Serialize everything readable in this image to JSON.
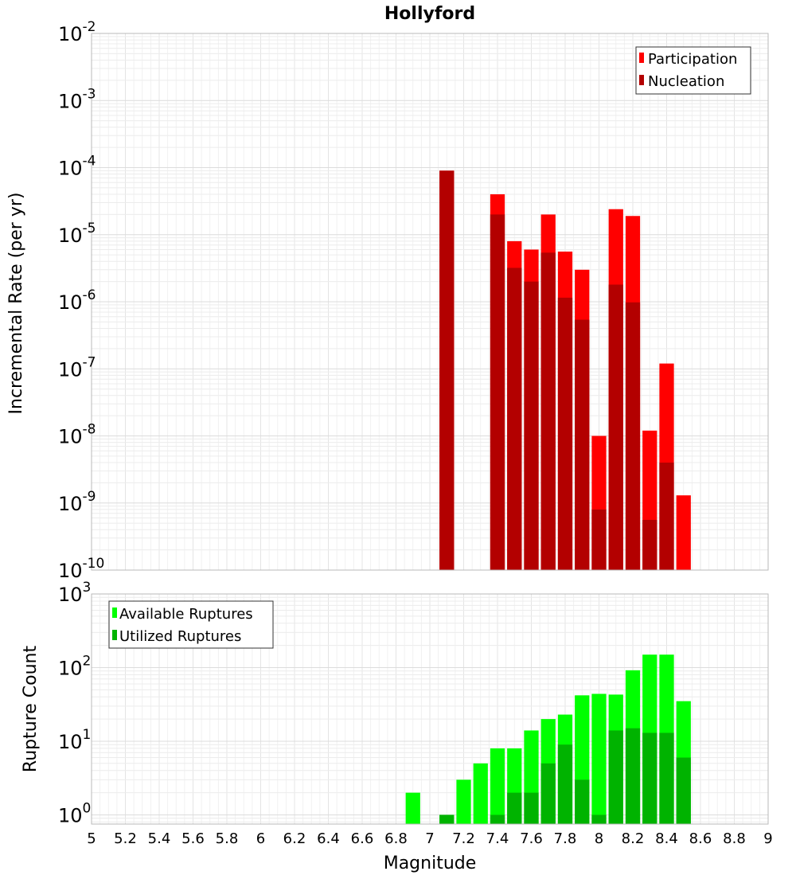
{
  "chart_data": [
    {
      "type": "bar",
      "title": "Hollyford",
      "xlabel": "",
      "ylabel": "Incremental Rate (per yr)",
      "yscale": "log",
      "ylim": [
        1e-10,
        0.01
      ],
      "xlim": [
        5,
        9
      ],
      "bin_width": 0.1,
      "y_tick_labels": [
        {
          "base": "10",
          "exp": "-10"
        },
        {
          "base": "10",
          "exp": "-9"
        },
        {
          "base": "10",
          "exp": "-8"
        },
        {
          "base": "10",
          "exp": "-7"
        },
        {
          "base": "10",
          "exp": "-6"
        },
        {
          "base": "10",
          "exp": "-5"
        },
        {
          "base": "10",
          "exp": "-4"
        },
        {
          "base": "10",
          "exp": "-3"
        },
        {
          "base": "10",
          "exp": "-2"
        }
      ],
      "legend": {
        "position": "top-right"
      },
      "grid": true,
      "x": [
        7.1,
        7.4,
        7.5,
        7.6,
        7.7,
        7.8,
        7.9,
        8.0,
        8.1,
        8.2,
        8.3,
        8.4,
        8.5
      ],
      "series": [
        {
          "name": "Participation",
          "color": "#ff0000",
          "values": [
            9e-05,
            4e-05,
            8e-06,
            6e-06,
            2e-05,
            5.6e-06,
            3e-06,
            1e-08,
            2.4e-05,
            1.9e-05,
            1.2e-08,
            1.2e-07,
            1.3e-09
          ]
        },
        {
          "name": "Nucleation",
          "color": "#b30000",
          "values": [
            9e-05,
            2e-05,
            3.2e-06,
            2e-06,
            5.4e-06,
            1.15e-06,
            5.4e-07,
            8e-10,
            1.8e-06,
            9.8e-07,
            5.6e-10,
            4e-09,
            null
          ]
        }
      ]
    },
    {
      "type": "bar",
      "title": "",
      "xlabel": "Magnitude",
      "ylabel": "Rupture Count",
      "yscale": "log",
      "ylim": [
        0.75,
        1000
      ],
      "xlim": [
        5,
        9
      ],
      "bin_width": 0.1,
      "x_tick_labels": [
        "5",
        "5.2",
        "5.4",
        "5.6",
        "5.8",
        "6",
        "6.2",
        "6.4",
        "6.6",
        "6.8",
        "7",
        "7.2",
        "7.4",
        "7.6",
        "7.8",
        "8",
        "8.2",
        "8.4",
        "8.6",
        "8.8",
        "9"
      ],
      "y_tick_labels": [
        {
          "base": "10",
          "exp": "0"
        },
        {
          "base": "10",
          "exp": "1"
        },
        {
          "base": "10",
          "exp": "2"
        },
        {
          "base": "10",
          "exp": "3"
        }
      ],
      "legend": {
        "position": "top-left"
      },
      "grid": true,
      "x": [
        6.9,
        7.1,
        7.2,
        7.3,
        7.4,
        7.5,
        7.6,
        7.7,
        7.8,
        7.9,
        8.0,
        8.1,
        8.2,
        8.3,
        8.4,
        8.5
      ],
      "series": [
        {
          "name": "Available Ruptures",
          "color": "#00ff00",
          "values": [
            2,
            1,
            3,
            5,
            8,
            8,
            14,
            20,
            23,
            42,
            44,
            43,
            92,
            150,
            150,
            35
          ]
        },
        {
          "name": "Utilized Ruptures",
          "color": "#00b300",
          "values": [
            null,
            1,
            null,
            null,
            1,
            2,
            2,
            5,
            9,
            3,
            1,
            14,
            15,
            13,
            13,
            6
          ]
        }
      ]
    }
  ]
}
